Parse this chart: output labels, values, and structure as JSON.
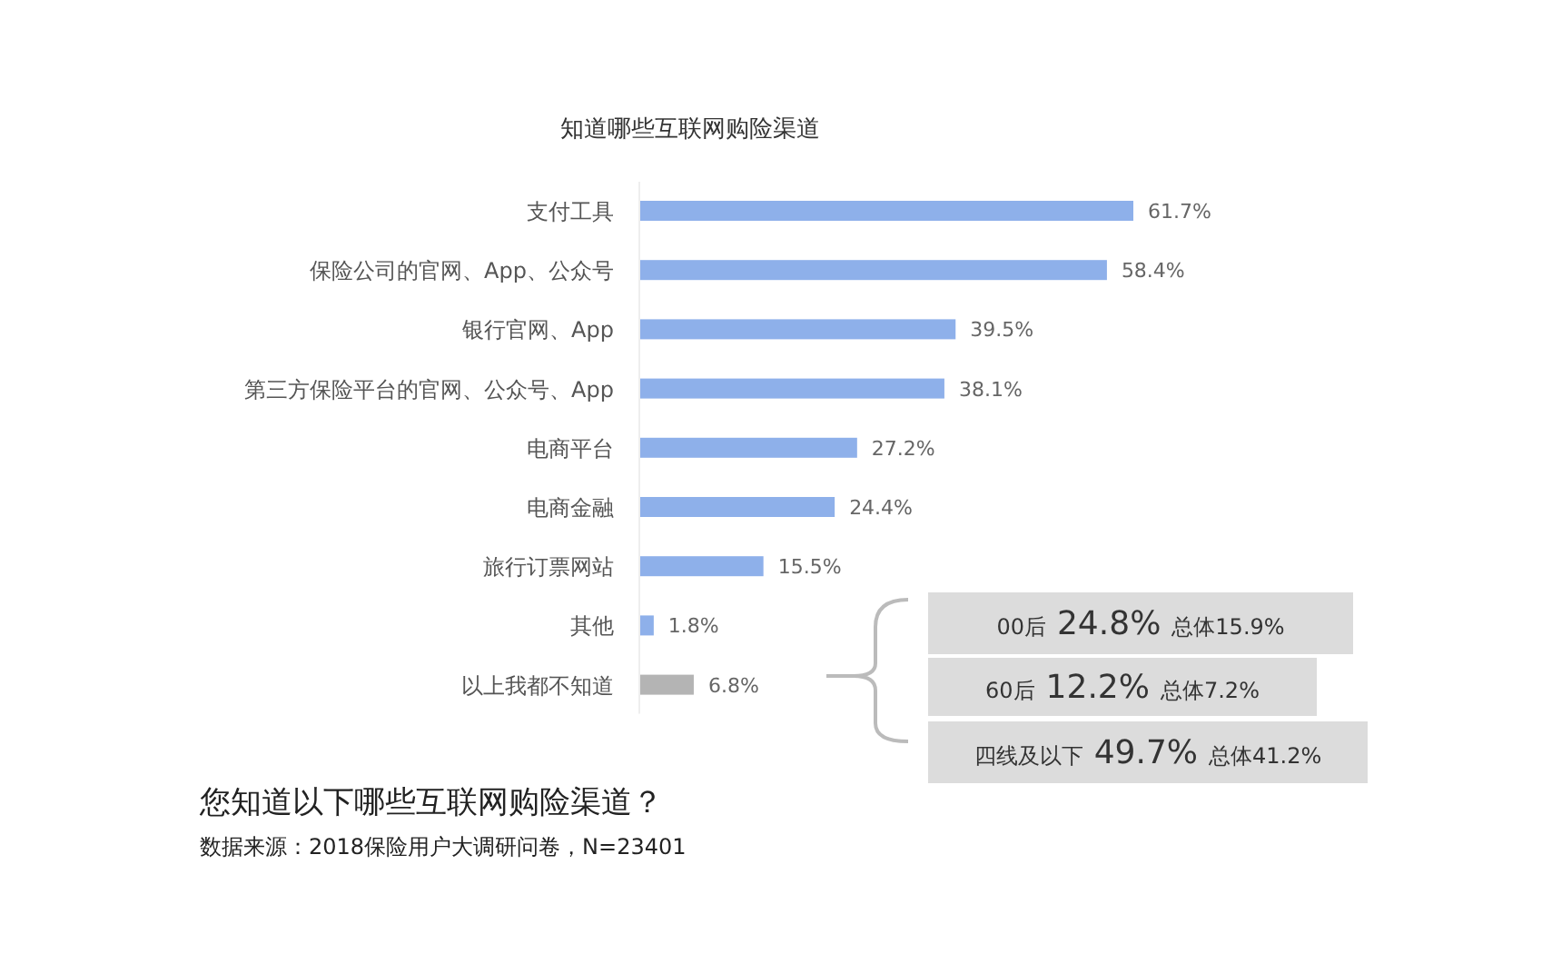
{
  "chart_data": {
    "type": "bar",
    "orientation": "horizontal",
    "title": "知道哪些互联网购险渠道",
    "categories": [
      "支付工具",
      "保险公司的官网、App、公众号",
      "银行官网、App",
      "第三方保险平台的官网、公众号、App",
      "电商平台",
      "电商金融",
      "旅行订票网站",
      "其他",
      "以上我都不知道"
    ],
    "values": [
      61.7,
      58.4,
      39.5,
      38.1,
      27.2,
      24.4,
      15.5,
      1.8,
      6.8
    ],
    "value_labels": [
      "61.7%",
      "58.4%",
      "39.5%",
      "38.1%",
      "27.2%",
      "24.4%",
      "15.5%",
      "1.8%",
      "6.8%"
    ],
    "colors": [
      "#8eb0ea",
      "#8eb0ea",
      "#8eb0ea",
      "#8eb0ea",
      "#8eb0ea",
      "#8eb0ea",
      "#8eb0ea",
      "#8eb0ea",
      "#b4b4b4"
    ],
    "annotations": [
      "00后 24.8% 总体15.9%",
      "60后 12.2% 总体7.2%",
      "四线及以下 49.7% 总体41.2%",
      "您知道以下哪些互联网购险渠道？",
      "数据来源：2018保险用户大调研问卷，N=23401"
    ]
  }
}
